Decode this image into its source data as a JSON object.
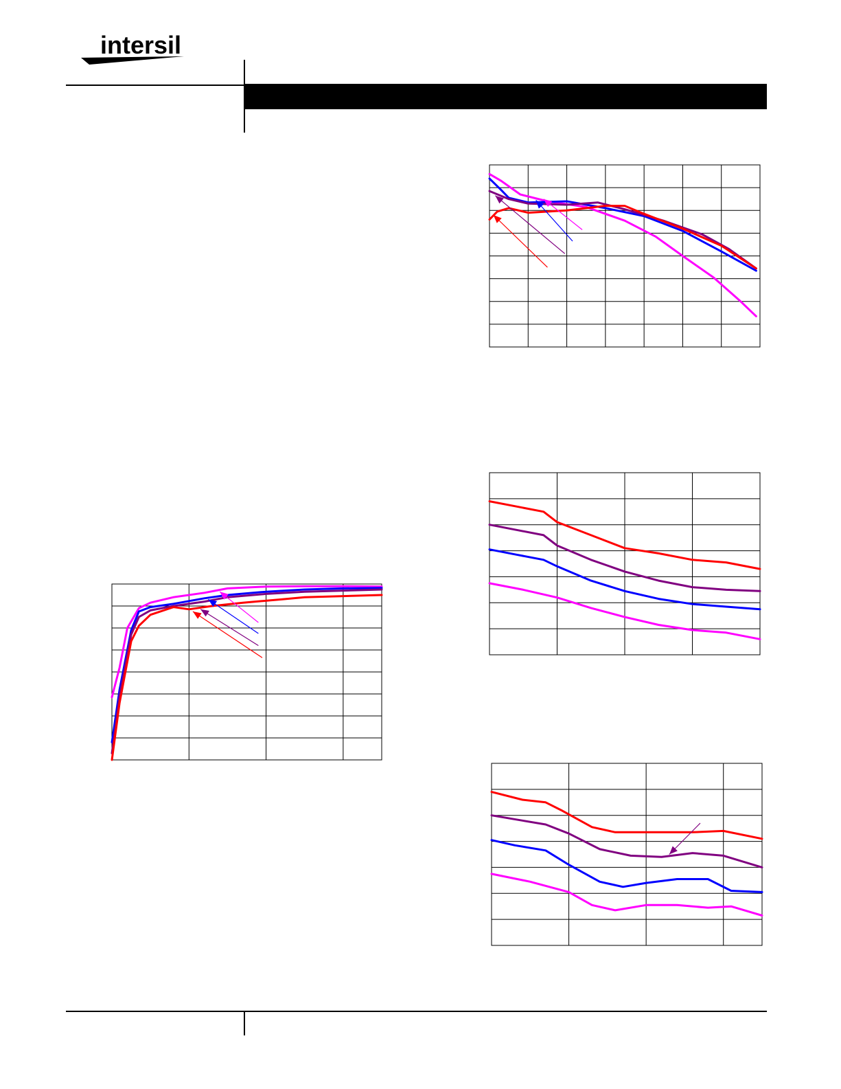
{
  "brand": {
    "logo_text": "intersil",
    "colors": {
      "black": "#000000",
      "red": "#ff0000",
      "purple": "#800080",
      "blue": "#0000ff",
      "magenta": "#ff00ff"
    }
  },
  "chart_data": [
    {
      "id": "chart1",
      "type": "line",
      "grid": true,
      "xlim": [
        0,
        3.5
      ],
      "ylim": [
        0,
        8
      ],
      "x_gridlines": [
        1,
        2,
        3
      ],
      "y_gridlines": [
        1,
        2,
        3,
        4,
        5,
        6,
        7
      ],
      "series": [
        {
          "color": "#ff00ff",
          "points": [
            [
              0,
              2.85
            ],
            [
              0.1,
              4.2
            ],
            [
              0.2,
              6.0
            ],
            [
              0.35,
              6.9
            ],
            [
              0.5,
              7.15
            ],
            [
              0.8,
              7.4
            ],
            [
              1.2,
              7.6
            ],
            [
              1.5,
              7.8
            ],
            [
              2,
              7.88
            ],
            [
              2.5,
              7.9
            ],
            [
              3,
              7.9
            ],
            [
              3.5,
              7.88
            ]
          ]
        },
        {
          "color": "#0000ff",
          "points": [
            [
              0,
              0.8
            ],
            [
              0.1,
              3.2
            ],
            [
              0.25,
              5.9
            ],
            [
              0.35,
              6.75
            ],
            [
              0.5,
              6.95
            ],
            [
              0.8,
              7.1
            ],
            [
              1.2,
              7.35
            ],
            [
              1.5,
              7.5
            ],
            [
              2,
              7.65
            ],
            [
              2.5,
              7.75
            ],
            [
              3,
              7.8
            ],
            [
              3.5,
              7.82
            ]
          ]
        },
        {
          "color": "#800080",
          "points": [
            [
              0,
              0.3
            ],
            [
              0.1,
              2.9
            ],
            [
              0.25,
              5.7
            ],
            [
              0.35,
              6.5
            ],
            [
              0.5,
              6.8
            ],
            [
              0.8,
              7.0
            ],
            [
              1.2,
              7.2
            ],
            [
              1.5,
              7.4
            ],
            [
              2,
              7.55
            ],
            [
              2.5,
              7.65
            ],
            [
              3,
              7.7
            ],
            [
              3.5,
              7.75
            ]
          ]
        },
        {
          "color": "#ff0000",
          "points": [
            [
              0,
              0
            ],
            [
              0.1,
              2.6
            ],
            [
              0.25,
              5.4
            ],
            [
              0.35,
              6.1
            ],
            [
              0.5,
              6.6
            ],
            [
              0.8,
              6.95
            ],
            [
              1.0,
              6.85
            ],
            [
              1.3,
              7.0
            ],
            [
              1.7,
              7.15
            ],
            [
              2.2,
              7.3
            ],
            [
              2.5,
              7.4
            ],
            [
              3,
              7.45
            ],
            [
              3.5,
              7.5
            ]
          ]
        }
      ],
      "annotations": [
        {
          "color": "#ff00ff",
          "from": [
            1.9,
            6.25
          ],
          "to": [
            1.4,
            7.65
          ]
        },
        {
          "color": "#0000ff",
          "from": [
            1.9,
            5.75
          ],
          "to": [
            1.25,
            7.3
          ]
        },
        {
          "color": "#800080",
          "from": [
            1.9,
            5.2
          ],
          "to": [
            1.15,
            6.85
          ]
        },
        {
          "color": "#ff0000",
          "from": [
            1.95,
            4.65
          ],
          "to": [
            1.05,
            6.75
          ]
        }
      ]
    },
    {
      "id": "chart2",
      "type": "line",
      "grid": true,
      "xlim": [
        0,
        7
      ],
      "ylim": [
        0,
        8
      ],
      "x_gridlines": [
        1,
        2,
        3,
        4,
        5,
        6
      ],
      "y_gridlines": [
        1,
        2,
        3,
        4,
        5,
        6,
        7
      ],
      "series": [
        {
          "color": "#ff00ff",
          "points": [
            [
              0,
              7.6
            ],
            [
              0.3,
              7.3
            ],
            [
              0.8,
              6.7
            ],
            [
              1.5,
              6.4
            ],
            [
              2.5,
              6.15
            ],
            [
              3.5,
              5.55
            ],
            [
              4.3,
              4.85
            ],
            [
              5,
              4.0
            ],
            [
              5.8,
              3.05
            ],
            [
              6.5,
              2.0
            ],
            [
              6.9,
              1.35
            ]
          ]
        },
        {
          "color": "#0000ff",
          "points": [
            [
              0,
              7.4
            ],
            [
              0.3,
              6.9
            ],
            [
              0.5,
              6.55
            ],
            [
              1.0,
              6.35
            ],
            [
              2,
              6.4
            ],
            [
              3,
              6.1
            ],
            [
              4,
              5.75
            ],
            [
              5,
              5.1
            ],
            [
              6,
              4.2
            ],
            [
              6.9,
              3.35
            ]
          ]
        },
        {
          "color": "#800080",
          "points": [
            [
              0,
              6.85
            ],
            [
              0.5,
              6.5
            ],
            [
              1.0,
              6.3
            ],
            [
              2,
              6.25
            ],
            [
              2.8,
              6.35
            ],
            [
              3.5,
              6.05
            ],
            [
              4.5,
              5.55
            ],
            [
              5.5,
              4.95
            ],
            [
              6.2,
              4.3
            ],
            [
              6.9,
              3.45
            ]
          ]
        },
        {
          "color": "#ff0000",
          "points": [
            [
              0,
              5.6
            ],
            [
              0.2,
              5.95
            ],
            [
              0.5,
              6.1
            ],
            [
              1.0,
              5.9
            ],
            [
              2,
              6.0
            ],
            [
              3,
              6.2
            ],
            [
              3.5,
              6.2
            ],
            [
              4,
              5.85
            ],
            [
              5,
              5.2
            ],
            [
              6,
              4.45
            ],
            [
              6.9,
              3.45
            ]
          ]
        }
      ],
      "annotations": [
        {
          "color": "#ff00ff",
          "from": [
            2.4,
            5.15
          ],
          "to": [
            1.4,
            6.5
          ]
        },
        {
          "color": "#0000ff",
          "from": [
            2.15,
            4.65
          ],
          "to": [
            1.2,
            6.45
          ]
        },
        {
          "color": "#800080",
          "from": [
            1.95,
            4.1
          ],
          "to": [
            0.15,
            6.65
          ]
        },
        {
          "color": "#ff0000",
          "from": [
            1.5,
            3.5
          ],
          "to": [
            0.1,
            5.8
          ]
        }
      ]
    },
    {
      "id": "chart3",
      "type": "line",
      "grid": true,
      "xlim": [
        0,
        4
      ],
      "ylim": [
        0,
        7
      ],
      "x_gridlines": [
        1,
        2,
        3
      ],
      "y_gridlines": [
        1,
        2,
        3,
        4,
        5,
        6
      ],
      "series": [
        {
          "color": "#ff0000",
          "points": [
            [
              0,
              5.9
            ],
            [
              0.4,
              5.7
            ],
            [
              0.8,
              5.5
            ],
            [
              1.0,
              5.1
            ],
            [
              1.5,
              4.6
            ],
            [
              2,
              4.1
            ],
            [
              2.5,
              3.9
            ],
            [
              3,
              3.65
            ],
            [
              3.5,
              3.55
            ],
            [
              4,
              3.3
            ]
          ]
        },
        {
          "color": "#800080",
          "points": [
            [
              0,
              5.0
            ],
            [
              0.4,
              4.8
            ],
            [
              0.8,
              4.6
            ],
            [
              1.0,
              4.2
            ],
            [
              1.5,
              3.65
            ],
            [
              2,
              3.2
            ],
            [
              2.5,
              2.85
            ],
            [
              3,
              2.6
            ],
            [
              3.5,
              2.5
            ],
            [
              4,
              2.45
            ],
            [
              4.0,
              2.45
            ]
          ]
        },
        {
          "color": "#0000ff",
          "points": [
            [
              0,
              4.05
            ],
            [
              0.4,
              3.85
            ],
            [
              0.8,
              3.65
            ],
            [
              1.0,
              3.4
            ],
            [
              1.5,
              2.85
            ],
            [
              2,
              2.45
            ],
            [
              2.5,
              2.15
            ],
            [
              3,
              1.95
            ],
            [
              3.5,
              1.85
            ],
            [
              4,
              1.75
            ]
          ]
        },
        {
          "color": "#ff00ff",
          "points": [
            [
              0,
              2.75
            ],
            [
              0.5,
              2.5
            ],
            [
              1.0,
              2.2
            ],
            [
              1.5,
              1.8
            ],
            [
              2,
              1.45
            ],
            [
              2.5,
              1.15
            ],
            [
              3,
              0.95
            ],
            [
              3.5,
              0.85
            ],
            [
              4,
              0.6
            ]
          ]
        }
      ],
      "annotations": []
    },
    {
      "id": "chart4",
      "type": "line",
      "grid": true,
      "xlim": [
        0,
        3.5
      ],
      "ylim": [
        0,
        7
      ],
      "x_gridlines": [
        1,
        2,
        3
      ],
      "y_gridlines": [
        1,
        2,
        3,
        4,
        5,
        6
      ],
      "series": [
        {
          "color": "#ff0000",
          "points": [
            [
              0,
              5.9
            ],
            [
              0.4,
              5.6
            ],
            [
              0.7,
              5.5
            ],
            [
              0.9,
              5.2
            ],
            [
              1.3,
              4.55
            ],
            [
              1.6,
              4.35
            ],
            [
              2,
              4.35
            ],
            [
              2.3,
              4.35
            ],
            [
              2.6,
              4.35
            ],
            [
              3,
              4.4
            ],
            [
              3.5,
              4.1
            ]
          ]
        },
        {
          "color": "#800080",
          "points": [
            [
              0,
              5.0
            ],
            [
              0.4,
              4.8
            ],
            [
              0.7,
              4.65
            ],
            [
              1.0,
              4.3
            ],
            [
              1.4,
              3.7
            ],
            [
              1.8,
              3.45
            ],
            [
              2.2,
              3.4
            ],
            [
              2.6,
              3.55
            ],
            [
              3,
              3.45
            ],
            [
              3.5,
              3.0
            ]
          ]
        },
        {
          "color": "#0000ff",
          "points": [
            [
              0,
              4.05
            ],
            [
              0.3,
              3.85
            ],
            [
              0.7,
              3.65
            ],
            [
              1.0,
              3.1
            ],
            [
              1.4,
              2.45
            ],
            [
              1.7,
              2.25
            ],
            [
              2.0,
              2.4
            ],
            [
              2.4,
              2.55
            ],
            [
              2.8,
              2.55
            ],
            [
              3.1,
              2.1
            ],
            [
              3.5,
              2.05
            ]
          ]
        },
        {
          "color": "#ff00ff",
          "points": [
            [
              0,
              2.75
            ],
            [
              0.5,
              2.45
            ],
            [
              1.0,
              2.05
            ],
            [
              1.3,
              1.55
            ],
            [
              1.6,
              1.35
            ],
            [
              2,
              1.55
            ],
            [
              2.4,
              1.55
            ],
            [
              2.8,
              1.45
            ],
            [
              3.1,
              1.5
            ],
            [
              3.5,
              1.15
            ]
          ]
        }
      ],
      "annotations": [
        {
          "color": "#800080",
          "from": [
            2.7,
            4.7
          ],
          "to": [
            2.3,
            3.5
          ]
        }
      ]
    }
  ]
}
